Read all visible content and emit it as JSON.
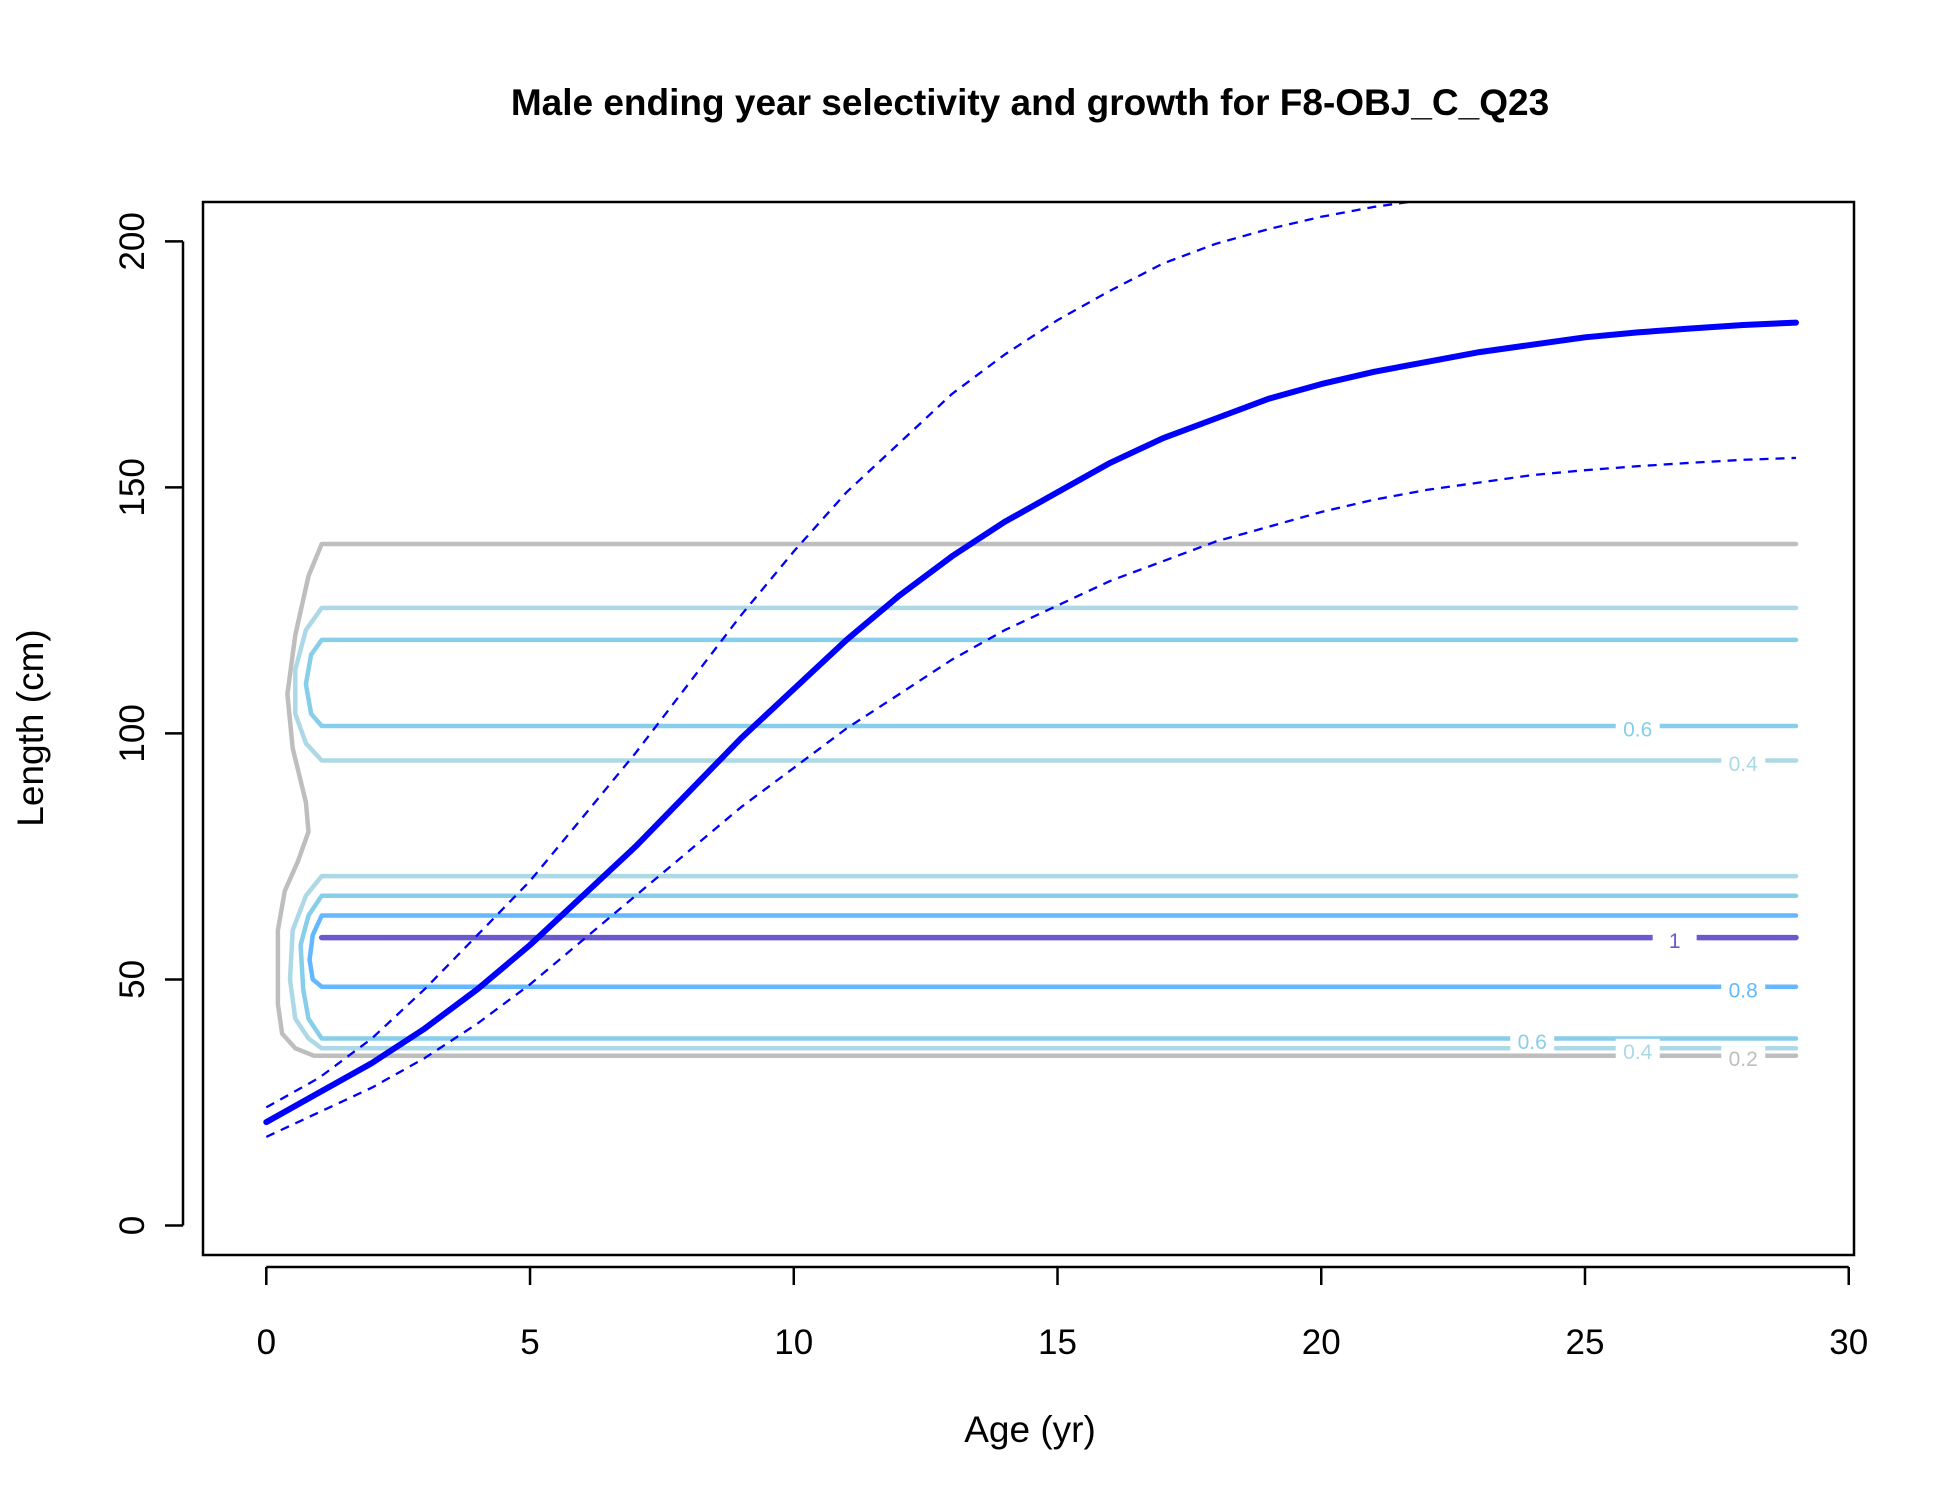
{
  "chart_data": {
    "type": "line",
    "title": "Male ending year selectivity and growth for F8-OBJ_C_Q23",
    "xlabel": "Age (yr)",
    "ylabel": "Length (cm)",
    "xlim": [
      -1.2,
      30.1
    ],
    "ylim": [
      -6,
      208
    ],
    "x_ticks": [
      0,
      5,
      10,
      15,
      20,
      25,
      30
    ],
    "y_ticks": [
      0,
      50,
      100,
      150,
      200
    ],
    "grid": false,
    "legend": "none",
    "series": [
      {
        "role": "mean-length-at-age",
        "color": "#0000ff",
        "style": "solid",
        "x": [
          0,
          1,
          2,
          3,
          4,
          5,
          6,
          7,
          8,
          9,
          10,
          11,
          12,
          13,
          14,
          15,
          16,
          17,
          18,
          19,
          20,
          21,
          22,
          23,
          24,
          25,
          26,
          27,
          28,
          29
        ],
        "y": [
          21,
          27,
          33,
          40,
          48,
          57,
          67,
          77,
          88,
          99,
          109,
          119,
          128,
          136,
          143,
          149,
          155,
          160,
          164,
          168,
          171,
          173.5,
          175.5,
          177.5,
          179,
          180.5,
          181.5,
          182.3,
          183,
          183.5
        ]
      },
      {
        "role": "upper-interval",
        "color": "#0000ff",
        "style": "dashed",
        "x": [
          0,
          1,
          2,
          3,
          4,
          5,
          6,
          7,
          8,
          9,
          10,
          11,
          12,
          13,
          14,
          15,
          16,
          17,
          18,
          19,
          20,
          21,
          22,
          23,
          24,
          25,
          26,
          27,
          28,
          29
        ],
        "y": [
          24,
          30,
          38,
          48,
          59,
          70,
          83,
          96,
          110,
          124,
          137,
          149,
          159,
          169,
          177,
          184,
          190,
          195.5,
          199.5,
          202.5,
          205,
          207,
          208.5,
          209.5,
          210.5,
          211.2,
          211.7,
          212,
          212.3,
          212.5
        ]
      },
      {
        "role": "lower-interval",
        "color": "#0000ff",
        "style": "dashed",
        "x": [
          0,
          1,
          2,
          3,
          4,
          5,
          6,
          7,
          8,
          9,
          10,
          11,
          12,
          13,
          14,
          15,
          16,
          17,
          18,
          19,
          20,
          21,
          22,
          23,
          24,
          25,
          26,
          27,
          28,
          29
        ],
        "y": [
          18,
          23,
          28,
          34,
          41,
          49,
          58,
          67,
          76,
          85,
          93,
          101,
          108,
          115,
          121,
          126,
          131,
          135,
          139,
          142,
          145,
          147.5,
          149.5,
          151,
          152.5,
          153.5,
          154.3,
          155,
          155.6,
          156
        ]
      }
    ],
    "contours": [
      {
        "level": 0.2,
        "color": "#bebebe",
        "label": "0.2",
        "label_at": [
          28,
          34
        ],
        "y_low": 34.5,
        "y_high": 138.5,
        "left_edge": [
          [
            1.05,
            138.5
          ],
          [
            0.8,
            132
          ],
          [
            0.55,
            120
          ],
          [
            0.4,
            108
          ],
          [
            0.5,
            97
          ],
          [
            0.75,
            86
          ],
          [
            0.8,
            80
          ],
          [
            0.6,
            74
          ],
          [
            0.35,
            68
          ],
          [
            0.22,
            60
          ],
          [
            0.22,
            45
          ],
          [
            0.3,
            39
          ],
          [
            0.55,
            36
          ],
          [
            0.9,
            34.5
          ]
        ]
      },
      {
        "level": 0.4,
        "color": "#add8e6",
        "label": "0.4",
        "label_at": [
          28,
          94
        ],
        "y_low": 94.5,
        "y_high": 125.5,
        "left_edge": [
          [
            1.05,
            125.5
          ],
          [
            0.75,
            121
          ],
          [
            0.55,
            113
          ],
          [
            0.55,
            104
          ],
          [
            0.75,
            98
          ],
          [
            1.05,
            94.5
          ]
        ]
      },
      {
        "level": 0.6,
        "color": "#87ceeb",
        "label": "0.6",
        "label_at": [
          26,
          101
        ],
        "y_low": 101.5,
        "y_high": 119,
        "left_edge": [
          [
            1.05,
            119
          ],
          [
            0.85,
            116
          ],
          [
            0.75,
            110
          ],
          [
            0.85,
            104
          ],
          [
            1.05,
            101.5
          ]
        ]
      },
      {
        "level": 0.4,
        "color": "#add8e6",
        "label": "0.4",
        "label_at": [
          26,
          35.5
        ],
        "y_low": 36,
        "y_high": 71,
        "left_edge": [
          [
            1.05,
            71
          ],
          [
            0.75,
            67
          ],
          [
            0.5,
            60
          ],
          [
            0.45,
            50
          ],
          [
            0.55,
            42
          ],
          [
            0.8,
            38
          ],
          [
            1.05,
            36
          ]
        ]
      },
      {
        "level": 0.6,
        "color": "#87ceeb",
        "label": "0.6",
        "label_at": [
          24,
          37.5
        ],
        "y_low": 38,
        "y_high": 67,
        "left_edge": [
          [
            1.05,
            67
          ],
          [
            0.8,
            63
          ],
          [
            0.65,
            57
          ],
          [
            0.7,
            48
          ],
          [
            0.8,
            42
          ],
          [
            1.05,
            38
          ]
        ]
      },
      {
        "level": 0.8,
        "color": "#63b8ff",
        "label": "0.8",
        "label_at": [
          28,
          48
        ],
        "y_low": 48.5,
        "y_high": 63,
        "left_edge": [
          [
            1.05,
            63
          ],
          [
            0.88,
            59
          ],
          [
            0.82,
            54
          ],
          [
            0.88,
            50
          ],
          [
            1.05,
            48.5
          ]
        ]
      },
      {
        "level": 1,
        "color": "#6a5acd",
        "label": "1",
        "label_at": [
          26.7,
          58
        ],
        "y_low": 58.5,
        "y_high": 58.5,
        "left_edge": []
      }
    ]
  }
}
